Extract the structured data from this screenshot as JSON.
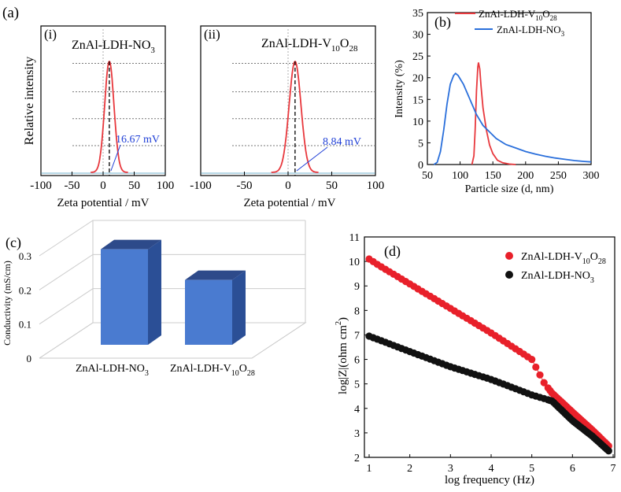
{
  "panels": {
    "a": "(a)",
    "b": "(b)",
    "c": "(c)",
    "d": "(d)",
    "a_i": "(i)",
    "a_ii": "(ii)"
  },
  "chart_data": [
    {
      "id": "a_i",
      "type": "line",
      "sample_label": {
        "base": "ZnAl-LDH-NO",
        "sub": "3"
      },
      "xlabel": "Zeta potential / mV",
      "ylabel": "Relative intensity",
      "xlim": [
        -100,
        100
      ],
      "xticks": [
        -100,
        -50,
        0,
        50,
        100
      ],
      "peak": 10,
      "sigma": 7.5,
      "annotation_value": 16.67,
      "annotation": "16.67 mV",
      "color": "#e8383d"
    },
    {
      "id": "a_ii",
      "type": "line",
      "sample_label": {
        "base": "ZnAl-LDH-V",
        "sub1": "10",
        "mid": "O",
        "sub2": "28"
      },
      "xlabel": "Zeta potential / mV",
      "xlim": [
        -100,
        100
      ],
      "xticks": [
        -100,
        -50,
        0,
        50,
        100
      ],
      "peak": 8,
      "sigma": 6.8,
      "annotation_value": 8.84,
      "annotation": "8.84 mV",
      "color": "#e8383d"
    },
    {
      "id": "b",
      "type": "line",
      "xlabel": "Particle size (d, nm)",
      "ylabel": "Intensity (%)",
      "xlim": [
        50,
        300
      ],
      "ylim": [
        0,
        35
      ],
      "xticks": [
        50,
        100,
        150,
        200,
        250,
        300
      ],
      "yticks": [
        0,
        5,
        10,
        15,
        20,
        25,
        30,
        35
      ],
      "series": [
        {
          "name": "ZnAl-LDH-V10O28",
          "legend": {
            "base": "ZnAl-LDH-V",
            "sub1": "10",
            "mid": "O",
            "sub2": "28"
          },
          "color": "#e8383d",
          "points": [
            [
              118,
              0
            ],
            [
              121,
              2
            ],
            [
              123,
              8
            ],
            [
              125,
              17
            ],
            [
              127,
              22.5
            ],
            [
              128,
              23.5
            ],
            [
              130,
              22
            ],
            [
              132,
              18
            ],
            [
              135,
              13
            ],
            [
              140,
              8
            ],
            [
              145,
              4.5
            ],
            [
              150,
              2.5
            ],
            [
              157,
              1
            ],
            [
              165,
              0.4
            ],
            [
              175,
              0.1
            ],
            [
              185,
              0
            ]
          ]
        },
        {
          "name": "ZnAl-LDH-NO3",
          "legend": {
            "base": "ZnAl-LDH-NO",
            "sub": "3"
          },
          "color": "#2a6fdb",
          "points": [
            [
              60,
              0
            ],
            [
              65,
              0.5
            ],
            [
              70,
              3
            ],
            [
              75,
              8
            ],
            [
              80,
              14
            ],
            [
              85,
              18.5
            ],
            [
              90,
              20.5
            ],
            [
              93,
              21
            ],
            [
              97,
              20.5
            ],
            [
              105,
              18.5
            ],
            [
              115,
              15
            ],
            [
              125,
              11.5
            ],
            [
              135,
              9
            ],
            [
              145,
              7.5
            ],
            [
              155,
              6
            ],
            [
              170,
              4.6
            ],
            [
              185,
              3.8
            ],
            [
              200,
              3
            ],
            [
              215,
              2.4
            ],
            [
              230,
              1.9
            ],
            [
              245,
              1.5
            ],
            [
              260,
              1.2
            ],
            [
              275,
              0.9
            ],
            [
              290,
              0.7
            ],
            [
              300,
              0.6
            ]
          ]
        }
      ]
    },
    {
      "id": "c",
      "type": "bar",
      "ylabel": "Conductivity (mS/cm)",
      "ylim": [
        0,
        0.3
      ],
      "yticks": [
        "0",
        "0.1",
        "0.2",
        "0.3"
      ],
      "categories": [
        {
          "base": "ZnAl-LDH-NO",
          "sub": "3"
        },
        {
          "base": "ZnAl-LDH-V",
          "sub1": "10",
          "mid": "O",
          "sub2": "28"
        }
      ],
      "values": [
        0.28,
        0.19
      ],
      "color": "#4a7bd0"
    },
    {
      "id": "d",
      "type": "scatter",
      "xlabel": "log frequency (Hz)",
      "ylabel": {
        "base": "log|Z|(ohm cm",
        "sup": "2",
        "end": ")"
      },
      "xlim": [
        1,
        7
      ],
      "ylim": [
        2,
        11
      ],
      "xticks": [
        1,
        2,
        3,
        4,
        5,
        6,
        7
      ],
      "yticks": [
        2,
        3,
        4,
        5,
        6,
        7,
        8,
        9,
        10,
        11
      ],
      "series": [
        {
          "name": "ZnAl-LDH-V10O28",
          "legend": {
            "base": "ZnAl-LDH-V",
            "sub1": "10",
            "mid": "O",
            "sub2": "28"
          },
          "color": "#e8202a",
          "line": [
            [
              1,
              10.1
            ],
            [
              1.2,
              9.88
            ],
            [
              2,
              9.08
            ],
            [
              3,
              8.08
            ],
            [
              4,
              7.08
            ],
            [
              5,
              6.0
            ],
            [
              5.3,
              5.05
            ],
            [
              5.5,
              4.62
            ],
            [
              6,
              3.85
            ],
            [
              6.5,
              3.1
            ],
            [
              6.9,
              2.45
            ]
          ]
        },
        {
          "name": "ZnAl-LDH-NO3",
          "legend": {
            "base": "ZnAl-LDH-NO",
            "sub": "3"
          },
          "color": "#111111",
          "line": [
            [
              1,
              6.95
            ],
            [
              2,
              6.32
            ],
            [
              3,
              5.7
            ],
            [
              4,
              5.18
            ],
            [
              5,
              4.55
            ],
            [
              5.5,
              4.3
            ],
            [
              6,
              3.5
            ],
            [
              6.5,
              2.85
            ],
            [
              6.9,
              2.25
            ]
          ]
        }
      ]
    }
  ]
}
